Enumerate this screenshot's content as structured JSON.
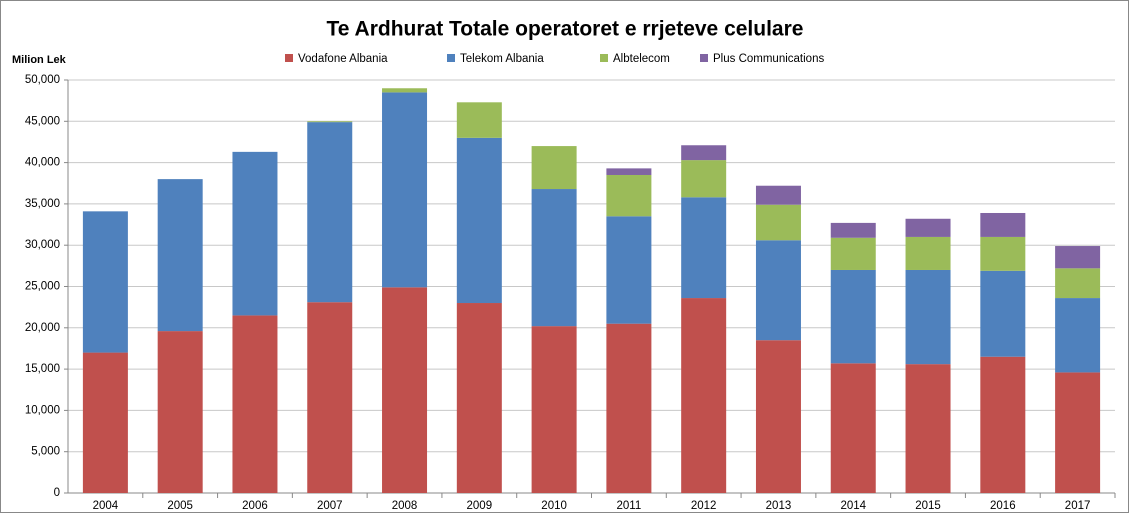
{
  "chart_data": {
    "type": "stacked_bar",
    "title": "Te Ardhurat Totale operatoret e rrjeteve celulare",
    "y_axis_label": "Milion Lek",
    "categories": [
      "2004",
      "2005",
      "2006",
      "2007",
      "2008",
      "2009",
      "2010",
      "2011",
      "2012",
      "2013",
      "2014",
      "2015",
      "2016",
      "2017"
    ],
    "series": [
      {
        "name": "Vodafone Albania",
        "color": "#c0504d",
        "values": [
          17000,
          19600,
          21500,
          23100,
          24900,
          23000,
          20200,
          20500,
          23600,
          18500,
          15700,
          15600,
          16500,
          14600
        ]
      },
      {
        "name": "Telekom Albania",
        "color": "#4f81bd",
        "values": [
          17100,
          18400,
          19800,
          21800,
          23600,
          20000,
          16600,
          13000,
          12200,
          12100,
          11300,
          11400,
          10400,
          9000
        ]
      },
      {
        "name": "Albtelecom",
        "color": "#9bbb59",
        "values": [
          null,
          null,
          null,
          100,
          500,
          4300,
          5200,
          5000,
          4500,
          4300,
          3900,
          4000,
          4100,
          3600
        ]
      },
      {
        "name": "Plus Communications",
        "color": "#8064a2",
        "values": [
          null,
          null,
          null,
          null,
          null,
          null,
          null,
          800,
          1800,
          2300,
          1800,
          2200,
          2900,
          2700
        ]
      }
    ],
    "ylim": [
      0,
      50000
    ],
    "yticks": [
      0,
      {
        "value": 5000,
        "label": "5,000"
      },
      {
        "value": 10000,
        "label": "10,000"
      },
      {
        "value": 15000,
        "label": "15,000"
      },
      {
        "value": 20000,
        "label": "20,000"
      },
      {
        "value": 25000,
        "label": "25,000"
      },
      {
        "value": 30000,
        "label": "30,000"
      },
      {
        "value": 35000,
        "label": "35,000"
      },
      {
        "value": 40000,
        "label": "40,000"
      },
      {
        "value": 45000,
        "label": "45,000"
      },
      {
        "value": 50000,
        "label": "50,000"
      }
    ],
    "grid": true,
    "legend": "top"
  }
}
